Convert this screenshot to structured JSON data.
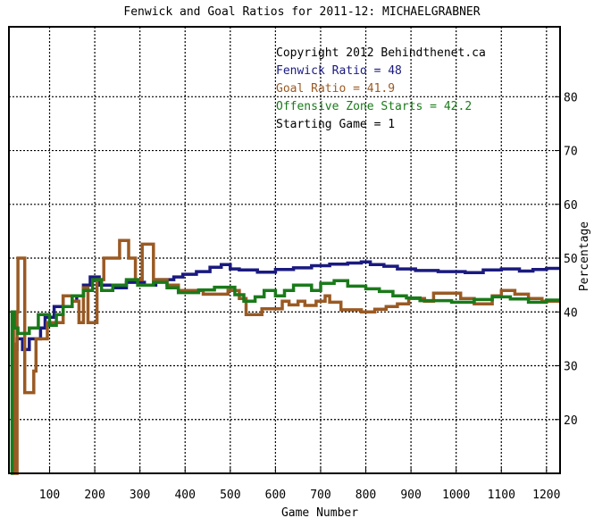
{
  "chart_data": {
    "type": "line",
    "title": "Fenwick and Goal Ratios for 2011-12: MICHAELGRABNER",
    "xlabel": "Game Number",
    "ylabel": "Percentage",
    "xlim": [
      10,
      1230
    ],
    "ylim": [
      10,
      93
    ],
    "x_ticks": [
      100,
      200,
      300,
      400,
      500,
      600,
      700,
      800,
      900,
      1000,
      1100,
      1200
    ],
    "y_ticks": [
      20,
      30,
      40,
      50,
      60,
      70,
      80
    ],
    "grid": true,
    "legend": {
      "placement": "top-right",
      "copyright": "Copyright 2012 Behindthenet.ca",
      "entries": [
        {
          "label": "Fenwick Ratio = 48",
          "color": "#1a1a80"
        },
        {
          "label": "Goal Ratio = 41.9",
          "color": "#9a5a23"
        },
        {
          "label": "Offensive Zone Starts = 42.2",
          "color": "#1a7a1a"
        }
      ],
      "footer": "Starting Game = 1"
    },
    "series": [
      {
        "name": "Fenwick Ratio",
        "color": "#1a1a80",
        "points": [
          [
            14,
            38
          ],
          [
            18,
            38
          ],
          [
            18,
            21
          ],
          [
            22,
            21
          ],
          [
            22,
            33
          ],
          [
            28,
            33
          ],
          [
            28,
            35
          ],
          [
            40,
            35
          ],
          [
            40,
            33
          ],
          [
            55,
            33
          ],
          [
            55,
            35
          ],
          [
            80,
            35
          ],
          [
            80,
            37
          ],
          [
            90,
            37
          ],
          [
            90,
            39
          ],
          [
            110,
            39
          ],
          [
            110,
            41
          ],
          [
            130,
            41
          ],
          [
            130,
            43
          ],
          [
            150,
            43
          ],
          [
            150,
            42
          ],
          [
            160,
            42
          ],
          [
            160,
            43
          ],
          [
            175,
            43
          ],
          [
            175,
            45
          ],
          [
            190,
            45
          ],
          [
            190,
            46.5
          ],
          [
            210,
            46.5
          ],
          [
            210,
            45
          ],
          [
            240,
            45
          ],
          [
            240,
            44.5
          ],
          [
            270,
            44.5
          ],
          [
            270,
            45.5
          ],
          [
            310,
            45.5
          ],
          [
            310,
            45
          ],
          [
            335,
            45
          ],
          [
            335,
            46
          ],
          [
            375,
            46
          ],
          [
            375,
            46.5
          ],
          [
            395,
            46.5
          ],
          [
            395,
            47
          ],
          [
            425,
            47
          ],
          [
            425,
            47.5
          ],
          [
            455,
            47.5
          ],
          [
            455,
            48.3
          ],
          [
            480,
            48.3
          ],
          [
            480,
            48.8
          ],
          [
            500,
            48.8
          ],
          [
            500,
            48
          ],
          [
            520,
            48
          ],
          [
            520,
            47.8
          ],
          [
            560,
            47.8
          ],
          [
            560,
            47.4
          ],
          [
            600,
            47.4
          ],
          [
            600,
            47.9
          ],
          [
            640,
            47.9
          ],
          [
            640,
            48.2
          ],
          [
            680,
            48.2
          ],
          [
            680,
            48.6
          ],
          [
            720,
            48.6
          ],
          [
            720,
            48.9
          ],
          [
            760,
            48.9
          ],
          [
            760,
            49.1
          ],
          [
            790,
            49.1
          ],
          [
            790,
            49.3
          ],
          [
            810,
            49.3
          ],
          [
            810,
            48.8
          ],
          [
            840,
            48.8
          ],
          [
            840,
            48.5
          ],
          [
            870,
            48.5
          ],
          [
            870,
            48
          ],
          [
            910,
            48
          ],
          [
            910,
            47.7
          ],
          [
            960,
            47.7
          ],
          [
            960,
            47.5
          ],
          [
            1020,
            47.5
          ],
          [
            1020,
            47.3
          ],
          [
            1060,
            47.3
          ],
          [
            1060,
            47.8
          ],
          [
            1100,
            47.8
          ],
          [
            1100,
            48
          ],
          [
            1140,
            48
          ],
          [
            1140,
            47.6
          ],
          [
            1170,
            47.6
          ],
          [
            1170,
            47.9
          ],
          [
            1200,
            47.9
          ],
          [
            1200,
            48.1
          ],
          [
            1228,
            48.1
          ]
        ]
      },
      {
        "name": "Goal Ratio",
        "color": "#9a5a23",
        "points": [
          [
            14,
            40
          ],
          [
            20,
            40
          ],
          [
            20,
            34
          ],
          [
            23,
            34
          ],
          [
            23,
            10
          ],
          [
            28,
            10
          ],
          [
            28,
            40
          ],
          [
            30,
            40
          ],
          [
            30,
            50
          ],
          [
            45,
            50
          ],
          [
            45,
            25
          ],
          [
            65,
            25
          ],
          [
            65,
            29
          ],
          [
            70,
            29
          ],
          [
            70,
            35
          ],
          [
            95,
            35
          ],
          [
            95,
            38
          ],
          [
            130,
            38
          ],
          [
            130,
            43
          ],
          [
            150,
            43
          ],
          [
            150,
            42
          ],
          [
            165,
            42
          ],
          [
            165,
            38
          ],
          [
            175,
            38
          ],
          [
            175,
            44.5
          ],
          [
            185,
            44.5
          ],
          [
            185,
            38
          ],
          [
            205,
            38
          ],
          [
            205,
            46
          ],
          [
            220,
            46
          ],
          [
            220,
            50
          ],
          [
            255,
            50
          ],
          [
            255,
            53.3
          ],
          [
            275,
            53.3
          ],
          [
            275,
            50
          ],
          [
            290,
            50
          ],
          [
            290,
            46
          ],
          [
            305,
            46
          ],
          [
            305,
            52.6
          ],
          [
            330,
            52.6
          ],
          [
            330,
            46
          ],
          [
            360,
            46
          ],
          [
            360,
            45
          ],
          [
            385,
            45
          ],
          [
            385,
            44
          ],
          [
            440,
            44
          ],
          [
            440,
            43.3
          ],
          [
            495,
            43.3
          ],
          [
            495,
            44
          ],
          [
            520,
            44
          ],
          [
            520,
            42.5
          ],
          [
            535,
            42.5
          ],
          [
            535,
            39.5
          ],
          [
            570,
            39.5
          ],
          [
            570,
            40.6
          ],
          [
            615,
            40.6
          ],
          [
            615,
            42
          ],
          [
            630,
            42
          ],
          [
            630,
            41.3
          ],
          [
            650,
            41.3
          ],
          [
            650,
            42
          ],
          [
            665,
            42
          ],
          [
            665,
            41.2
          ],
          [
            690,
            41.2
          ],
          [
            690,
            42
          ],
          [
            710,
            42
          ],
          [
            710,
            43
          ],
          [
            720,
            43
          ],
          [
            720,
            41.8
          ],
          [
            745,
            41.8
          ],
          [
            745,
            40.4
          ],
          [
            790,
            40.4
          ],
          [
            790,
            40
          ],
          [
            820,
            40
          ],
          [
            820,
            40.5
          ],
          [
            845,
            40.5
          ],
          [
            845,
            41
          ],
          [
            870,
            41
          ],
          [
            870,
            41.5
          ],
          [
            895,
            41.5
          ],
          [
            895,
            42.5
          ],
          [
            930,
            42.5
          ],
          [
            930,
            42
          ],
          [
            950,
            42
          ],
          [
            950,
            43.5
          ],
          [
            1010,
            43.5
          ],
          [
            1010,
            42.5
          ],
          [
            1040,
            42.5
          ],
          [
            1040,
            41.5
          ],
          [
            1080,
            41.5
          ],
          [
            1080,
            43
          ],
          [
            1100,
            43
          ],
          [
            1100,
            44
          ],
          [
            1130,
            44
          ],
          [
            1130,
            43.3
          ],
          [
            1160,
            43.3
          ],
          [
            1160,
            42.5
          ],
          [
            1190,
            42.5
          ],
          [
            1190,
            42
          ],
          [
            1228,
            42
          ]
        ]
      },
      {
        "name": "Offensive Zone Starts",
        "color": "#1a7a1a",
        "points": [
          [
            14,
            10
          ],
          [
            17,
            10
          ],
          [
            17,
            40
          ],
          [
            22,
            40
          ],
          [
            22,
            37
          ],
          [
            30,
            37
          ],
          [
            30,
            36
          ],
          [
            55,
            36
          ],
          [
            55,
            37
          ],
          [
            75,
            37
          ],
          [
            75,
            39.5
          ],
          [
            100,
            39.5
          ],
          [
            100,
            37.5
          ],
          [
            115,
            37.5
          ],
          [
            115,
            39.5
          ],
          [
            130,
            39.5
          ],
          [
            130,
            41
          ],
          [
            150,
            41
          ],
          [
            150,
            43
          ],
          [
            175,
            43
          ],
          [
            175,
            44
          ],
          [
            195,
            44
          ],
          [
            195,
            46
          ],
          [
            215,
            46
          ],
          [
            215,
            44
          ],
          [
            240,
            44
          ],
          [
            240,
            45
          ],
          [
            270,
            45
          ],
          [
            270,
            46
          ],
          [
            295,
            46
          ],
          [
            295,
            45
          ],
          [
            330,
            45
          ],
          [
            330,
            45.5
          ],
          [
            360,
            45.5
          ],
          [
            360,
            44.5
          ],
          [
            385,
            44.5
          ],
          [
            385,
            43.6
          ],
          [
            430,
            43.6
          ],
          [
            430,
            44.1
          ],
          [
            465,
            44.1
          ],
          [
            465,
            44.6
          ],
          [
            510,
            44.6
          ],
          [
            510,
            43.2
          ],
          [
            530,
            43.2
          ],
          [
            530,
            42
          ],
          [
            555,
            42
          ],
          [
            555,
            42.8
          ],
          [
            575,
            42.8
          ],
          [
            575,
            44
          ],
          [
            600,
            44
          ],
          [
            600,
            43
          ],
          [
            620,
            43
          ],
          [
            620,
            44
          ],
          [
            640,
            44
          ],
          [
            640,
            45
          ],
          [
            680,
            45
          ],
          [
            680,
            44
          ],
          [
            700,
            44
          ],
          [
            700,
            45.3
          ],
          [
            730,
            45.3
          ],
          [
            730,
            45.8
          ],
          [
            760,
            45.8
          ],
          [
            760,
            44.8
          ],
          [
            800,
            44.8
          ],
          [
            800,
            44.3
          ],
          [
            830,
            44.3
          ],
          [
            830,
            43.8
          ],
          [
            860,
            43.8
          ],
          [
            860,
            43
          ],
          [
            890,
            43
          ],
          [
            890,
            42.6
          ],
          [
            920,
            42.6
          ],
          [
            920,
            42.1
          ],
          [
            990,
            42.1
          ],
          [
            990,
            41.8
          ],
          [
            1040,
            41.8
          ],
          [
            1040,
            42.3
          ],
          [
            1080,
            42.3
          ],
          [
            1080,
            42.8
          ],
          [
            1120,
            42.8
          ],
          [
            1120,
            42.4
          ],
          [
            1160,
            42.4
          ],
          [
            1160,
            41.8
          ],
          [
            1200,
            41.8
          ],
          [
            1200,
            42.2
          ],
          [
            1228,
            42.2
          ]
        ]
      }
    ]
  }
}
